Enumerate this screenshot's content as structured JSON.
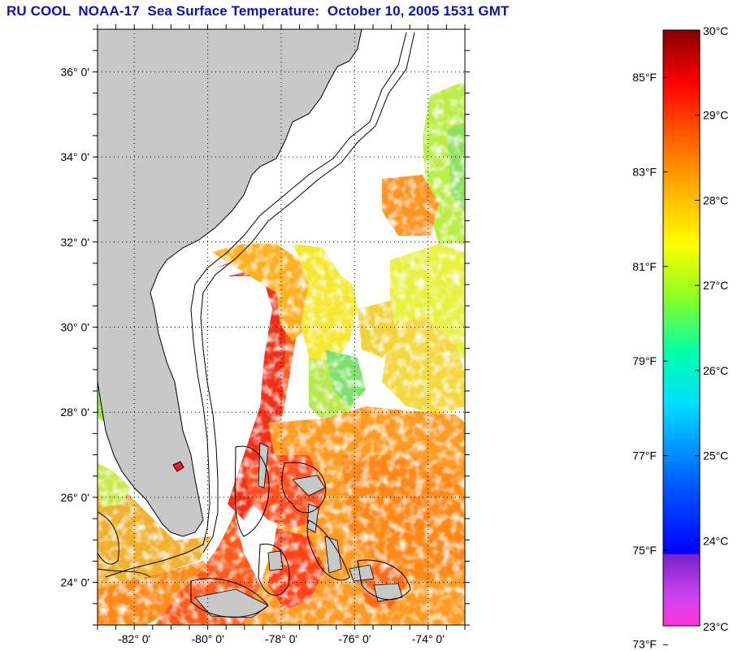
{
  "title": "RU COOL  NOAA-17  Sea Surface Temperature:  October 10, 2005 1531 GMT",
  "map": {
    "lon_range": [
      -83,
      -73
    ],
    "lat_range": [
      23,
      37
    ],
    "lat_labels": [
      {
        "lat": 36,
        "text": "36° 0'"
      },
      {
        "lat": 34,
        "text": "34° 0'"
      },
      {
        "lat": 32,
        "text": "32° 0'"
      },
      {
        "lat": 30,
        "text": "30° 0'"
      },
      {
        "lat": 28,
        "text": "28° 0'"
      },
      {
        "lat": 26,
        "text": "26° 0'"
      },
      {
        "lat": 24,
        "text": "24° 0'"
      }
    ],
    "lon_labels": [
      {
        "lon": -82,
        "text": "-82° 0'"
      },
      {
        "lon": -80,
        "text": "-80° 0'"
      },
      {
        "lon": -78,
        "text": "-78° 0'"
      },
      {
        "lon": -76,
        "text": "-76° 0'"
      },
      {
        "lon": -74,
        "text": "-74° 0'"
      }
    ],
    "land_color": "#c8c8c8",
    "no_data_color": "#ffffff",
    "gridlines": "dotted"
  },
  "colorbar": {
    "celsius_range": [
      23,
      30
    ],
    "celsius_labels": [
      "30°C",
      "29°C",
      "28°C",
      "27°C",
      "26°C",
      "25°C",
      "24°C",
      "23°C"
    ],
    "fahrenheit_labels": [
      {
        "value": 85,
        "text": "85°F"
      },
      {
        "value": 83,
        "text": "83°F"
      },
      {
        "value": 81,
        "text": "81°F"
      },
      {
        "value": 79,
        "text": "79°F"
      },
      {
        "value": 77,
        "text": "77°F"
      },
      {
        "value": 75,
        "text": "75°F"
      },
      {
        "value": 73,
        "text": "73°F"
      }
    ],
    "colors": [
      "#ff33cc",
      "#9933ff",
      "#0000ff",
      "#0088ff",
      "#00ffff",
      "#00ff88",
      "#88ff00",
      "#ffff00",
      "#ffaa00",
      "#ff6600",
      "#ff0000",
      "#cc0000",
      "#880000"
    ]
  }
}
